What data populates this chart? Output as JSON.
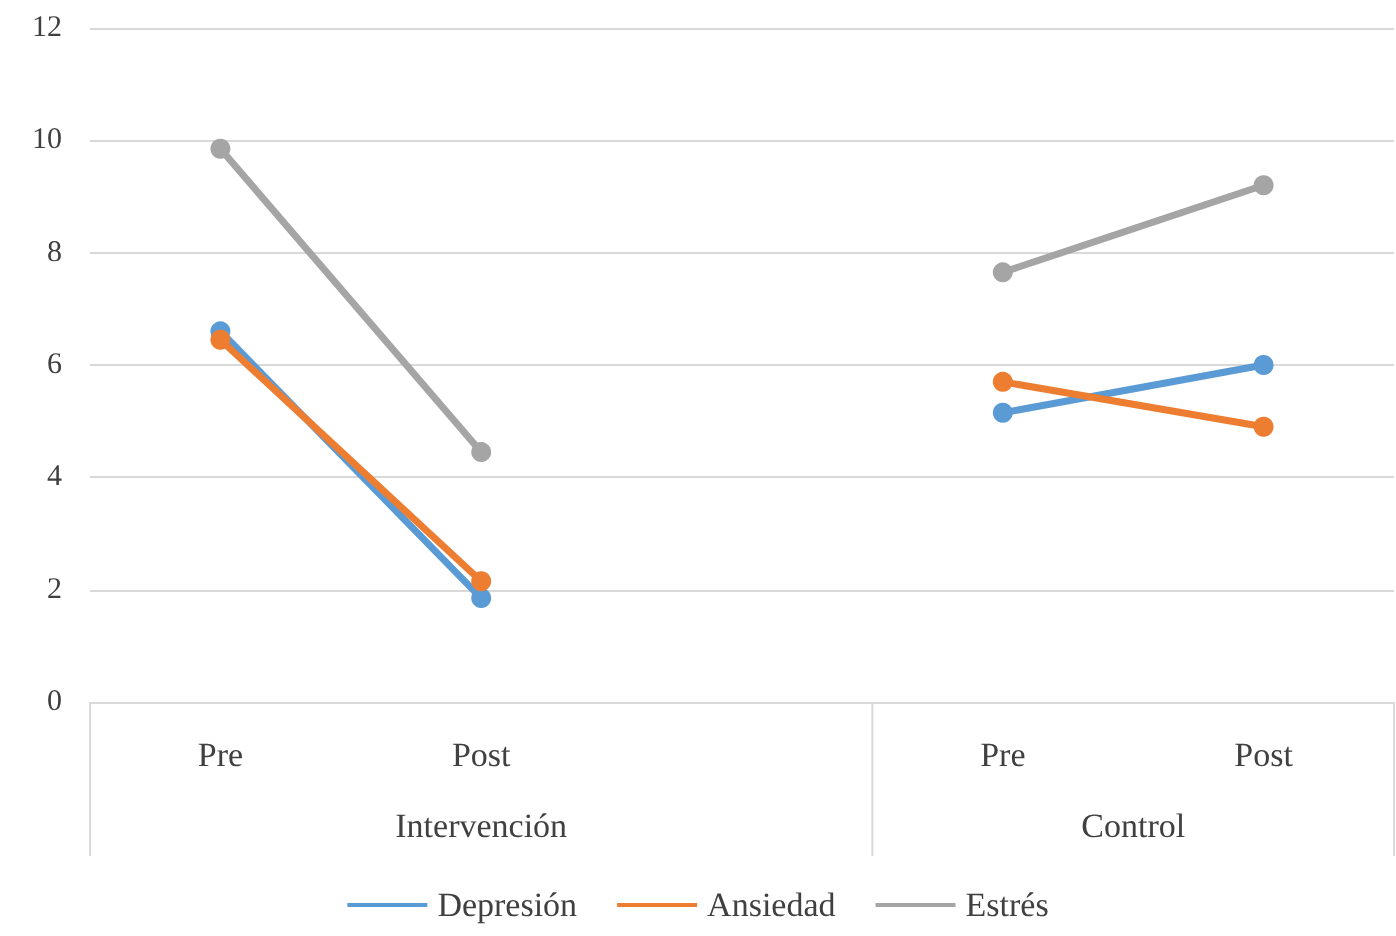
{
  "chart_data": {
    "type": "line",
    "categories": [
      "Pre",
      "Post",
      null,
      "Pre",
      "Post"
    ],
    "series": [
      {
        "name": "Depresión",
        "color": "#5b9bd5",
        "values": [
          6.6,
          1.85,
          null,
          5.15,
          6.0
        ]
      },
      {
        "name": "Ansiedad",
        "color": "#ed7d31",
        "values": [
          6.45,
          2.15,
          null,
          5.7,
          4.9
        ]
      },
      {
        "name": "Estrés",
        "color": "#a5a5a5",
        "values": [
          9.85,
          4.45,
          null,
          7.65,
          9.2
        ]
      }
    ],
    "annotations": [
      "Intervención",
      "Control"
    ],
    "ylim": [
      0,
      12
    ],
    "yticks": [
      0,
      2,
      4,
      6,
      8,
      10,
      12
    ],
    "grid": "y",
    "legend": "bottom",
    "marker": "circle",
    "line_style": "solid"
  }
}
